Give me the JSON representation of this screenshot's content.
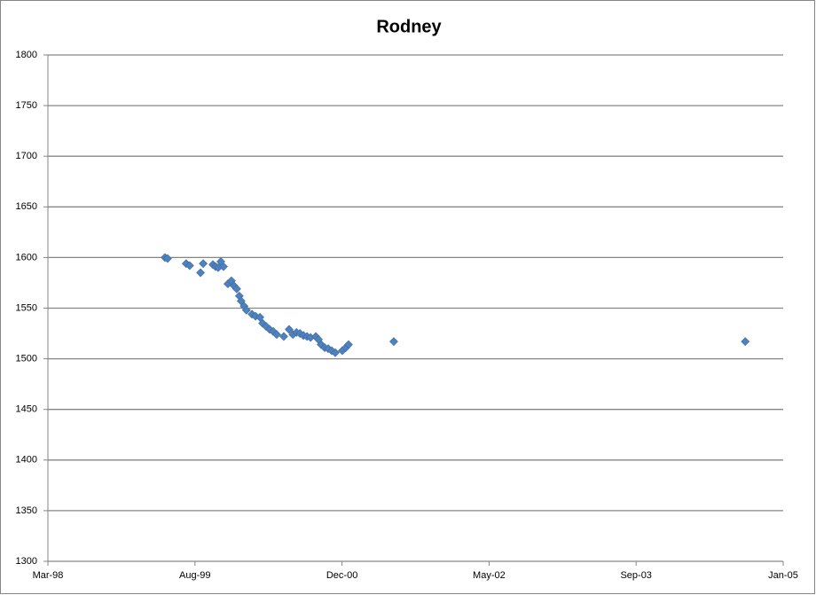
{
  "chart_data": {
    "type": "scatter",
    "title": "Rodney",
    "series": [
      {
        "name": "Rodney",
        "color": "#4f81bd",
        "x": [
          36253,
          36262,
          36325,
          36337,
          36374,
          36383,
          36416,
          36425,
          36434,
          36443,
          36452,
          36467,
          36479,
          36488,
          36497,
          36506,
          36512,
          36522,
          36530,
          36549,
          36561,
          36576,
          36585,
          36597,
          36609,
          36621,
          36633,
          36657,
          36675,
          36688,
          36700,
          36712,
          36724,
          36736,
          36748,
          36766,
          36775,
          36784,
          36796,
          36808,
          36820,
          36832,
          36856,
          36868,
          36877,
          37031,
          38226
        ],
        "values": [
          1600,
          1599,
          1594,
          1592,
          1585,
          1594,
          1593,
          1591,
          1590,
          1596,
          1591,
          1574,
          1577,
          1572,
          1569,
          1562,
          1557,
          1552,
          1548,
          1544,
          1542,
          1541,
          1535,
          1532,
          1529,
          1527,
          1524,
          1522,
          1529,
          1524,
          1526,
          1525,
          1523,
          1522,
          1521,
          1522,
          1519,
          1514,
          1511,
          1510,
          1508,
          1506,
          1508,
          1511,
          1514,
          1517,
          1517
        ]
      }
    ],
    "xlim": [
      35855,
      38355
    ],
    "xticks": [
      {
        "value": 35855,
        "label": "Mar-98"
      },
      {
        "value": 36355,
        "label": "Aug-99"
      },
      {
        "value": 36855,
        "label": "Dec-00"
      },
      {
        "value": 37355,
        "label": "May-02"
      },
      {
        "value": 37855,
        "label": "Sep-03"
      },
      {
        "value": 38355,
        "label": "Jan-05"
      }
    ],
    "ylim": [
      1300,
      1800
    ],
    "yticks": [
      1300,
      1350,
      1400,
      1450,
      1500,
      1550,
      1600,
      1650,
      1700,
      1750,
      1800
    ],
    "grid": true
  }
}
